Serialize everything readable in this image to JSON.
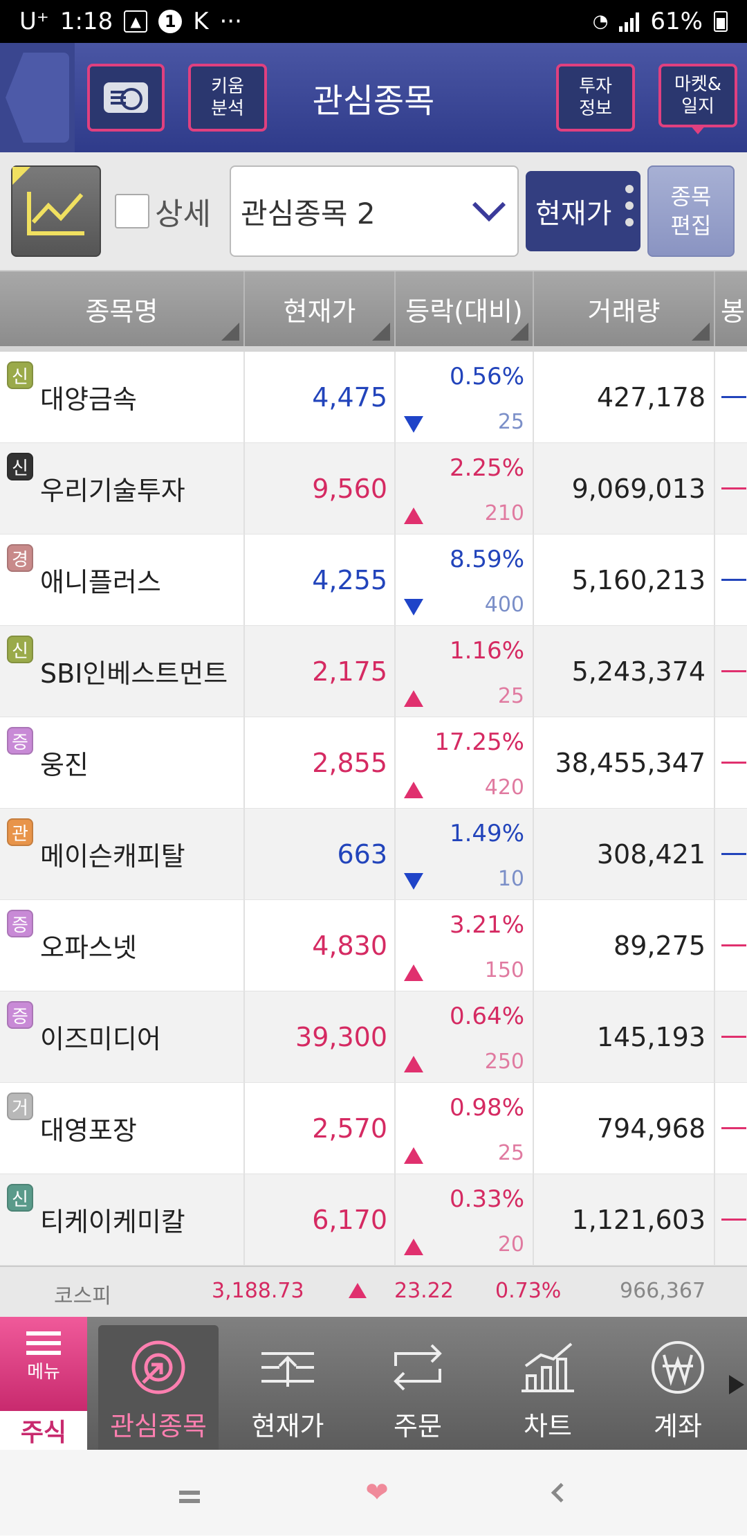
{
  "status_bar": {
    "carrier": "U⁺",
    "time": "1:18",
    "more": "···",
    "battery": "61%"
  },
  "header": {
    "title": "관심종목",
    "analysis_btn": "키움\n분석",
    "invest_btn": "투자\n정보",
    "market_btn": "마켓&\n일지"
  },
  "toolbar": {
    "detail_label": "상세",
    "group_select": "관심종목 2",
    "price_view": "현재가",
    "edit_btn": "종목\n편집"
  },
  "table": {
    "columns": [
      "종목명",
      "현재가",
      "등락(대비)",
      "거래량",
      "봉"
    ],
    "rows": [
      {
        "badge": "신",
        "badge_color": "#9aaa4a",
        "name": "대양금속",
        "price": "4,475",
        "pct": "0.56%",
        "diff": "25",
        "dir": "down",
        "volume": "427,178"
      },
      {
        "badge": "신",
        "badge_color": "#333333",
        "name": "우리기술투자",
        "price": "9,560",
        "pct": "2.25%",
        "diff": "210",
        "dir": "up",
        "volume": "9,069,013"
      },
      {
        "badge": "경",
        "badge_color": "#c88a8a",
        "name": "애니플러스",
        "price": "4,255",
        "pct": "8.59%",
        "diff": "400",
        "dir": "down",
        "volume": "5,160,213"
      },
      {
        "badge": "신",
        "badge_color": "#9aaa4a",
        "name": "SBI인베스트먼트",
        "price": "2,175",
        "pct": "1.16%",
        "diff": "25",
        "dir": "up",
        "volume": "5,243,374"
      },
      {
        "badge": "증",
        "badge_color": "#c88ad6",
        "name": "웅진",
        "price": "2,855",
        "pct": "17.25%",
        "diff": "420",
        "dir": "up",
        "volume": "38,455,347"
      },
      {
        "badge": "관",
        "badge_color": "#e8944a",
        "name": "메이슨캐피탈",
        "price": "663",
        "pct": "1.49%",
        "diff": "10",
        "dir": "down",
        "volume": "308,421"
      },
      {
        "badge": "증",
        "badge_color": "#c88ad6",
        "name": "오파스넷",
        "price": "4,830",
        "pct": "3.21%",
        "diff": "150",
        "dir": "up",
        "volume": "89,275"
      },
      {
        "badge": "증",
        "badge_color": "#c88ad6",
        "name": "이즈미디어",
        "price": "39,300",
        "pct": "0.64%",
        "diff": "250",
        "dir": "up",
        "volume": "145,193"
      },
      {
        "badge": "거",
        "badge_color": "#b8b8b8",
        "name": "대영포장",
        "price": "2,570",
        "pct": "0.98%",
        "diff": "25",
        "dir": "up",
        "volume": "794,968"
      },
      {
        "badge": "신",
        "badge_color": "#5a9a8a",
        "name": "티케이케미칼",
        "price": "6,170",
        "pct": "0.33%",
        "diff": "20",
        "dir": "up",
        "volume": "1,121,603"
      }
    ]
  },
  "index": {
    "name": "코스피",
    "value": "3,188.73",
    "change": "23.22",
    "pct": "0.73%",
    "volume": "966,367"
  },
  "bottom_nav": {
    "menu_label": "메뉴",
    "stock_label": "주식",
    "items": [
      "관심종목",
      "현재가",
      "주문",
      "차트",
      "계좌"
    ]
  }
}
